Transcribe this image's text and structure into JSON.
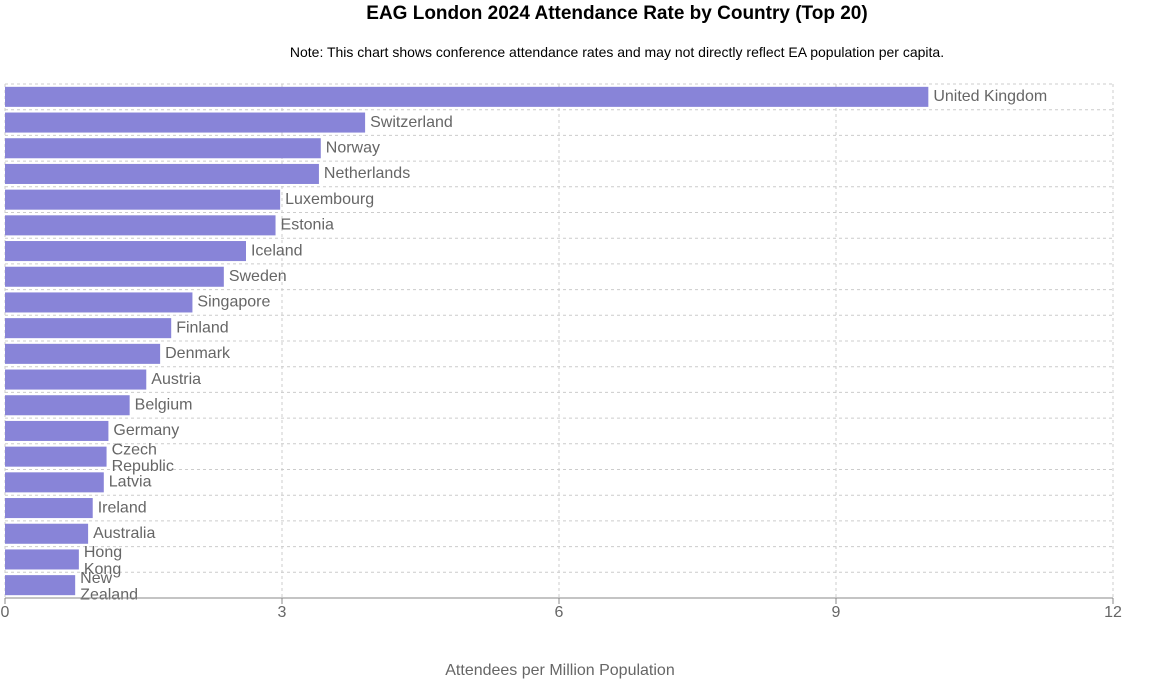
{
  "header": {
    "title": "EAG London 2024 Attendance Rate by Country (Top 20)",
    "note": "Note: This chart shows conference attendance rates and may not directly reflect EA population per capita."
  },
  "chart_data": {
    "type": "bar",
    "orientation": "horizontal",
    "title": "EAG London 2024 Attendance Rate by Country (Top 20)",
    "xlabel": "Attendees per Million Population",
    "ylabel": "",
    "xlim": [
      0,
      12
    ],
    "xticks": [
      0,
      3,
      6,
      9,
      12
    ],
    "grid": true,
    "bar_color": "#8884d8",
    "categories": [
      "United Kingdom",
      "Switzerland",
      "Norway",
      "Netherlands",
      "Luxembourg",
      "Estonia",
      "Iceland",
      "Sweden",
      "Singapore",
      "Finland",
      "Denmark",
      "Austria",
      "Belgium",
      "Germany",
      "Czech Republic",
      "Latvia",
      "Ireland",
      "Australia",
      "Hong Kong",
      "New Zealand"
    ],
    "values": [
      10.0,
      3.9,
      3.42,
      3.4,
      2.98,
      2.93,
      2.61,
      2.37,
      2.03,
      1.8,
      1.68,
      1.53,
      1.35,
      1.12,
      1.1,
      1.07,
      0.95,
      0.9,
      0.8,
      0.76
    ]
  }
}
